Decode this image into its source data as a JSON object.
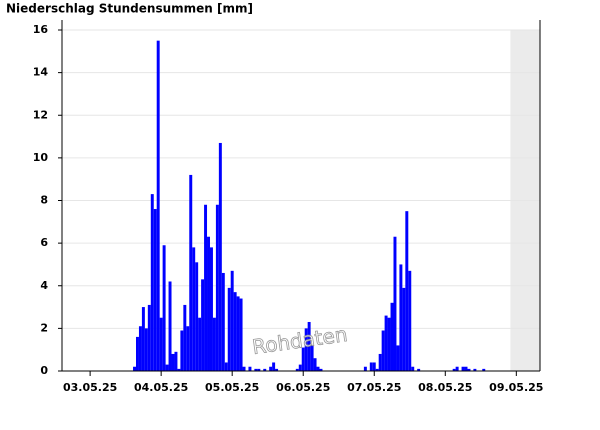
{
  "chart_data": {
    "type": "bar",
    "title": "Niederschlag Stundensummen [mm]",
    "annotation": "Rohdaten",
    "color": "#0000ff",
    "x": [
      15,
      16,
      17,
      18,
      19,
      20,
      21,
      22,
      23,
      24,
      25,
      26,
      27,
      28,
      29,
      30,
      31,
      32,
      33,
      34,
      35,
      36,
      37,
      38,
      39,
      40,
      41,
      42,
      43,
      44,
      45,
      46,
      47,
      48,
      49,
      50,
      51,
      52,
      54,
      56,
      57,
      59,
      61,
      62,
      63,
      70,
      71,
      72,
      73,
      74,
      75,
      76,
      77,
      78,
      93,
      95,
      96,
      97,
      98,
      99,
      100,
      101,
      102,
      103,
      104,
      105,
      106,
      107,
      108,
      109,
      111,
      123,
      124,
      126,
      127,
      128,
      130,
      133
    ],
    "values": [
      0.2,
      1.6,
      2.1,
      3.0,
      2.0,
      3.1,
      8.3,
      7.6,
      15.5,
      2.5,
      5.9,
      0.3,
      4.2,
      0.8,
      0.9,
      0.1,
      1.9,
      3.1,
      2.1,
      9.2,
      5.8,
      5.1,
      2.5,
      4.3,
      7.8,
      6.3,
      5.8,
      2.5,
      7.8,
      10.7,
      4.6,
      0.4,
      3.9,
      4.7,
      3.7,
      3.5,
      3.4,
      0.2,
      0.2,
      0.1,
      0.1,
      0.1,
      0.2,
      0.4,
      0.1,
      0.1,
      0.3,
      1.1,
      2.0,
      2.3,
      1.2,
      0.6,
      0.2,
      0.1,
      0.2,
      0.4,
      0.4,
      0.1,
      0.8,
      1.9,
      2.6,
      2.5,
      3.2,
      6.3,
      1.2,
      5.0,
      3.9,
      7.5,
      4.7,
      0.2,
      0.1,
      0.1,
      0.2,
      0.2,
      0.2,
      0.1,
      0.1,
      0.1
    ],
    "xlim": [
      -9.5,
      152
    ],
    "xticks": [
      {
        "value": 0,
        "label": "03.05.25"
      },
      {
        "value": 24,
        "label": "04.05.25"
      },
      {
        "value": 48,
        "label": "05.05.25"
      },
      {
        "value": 72,
        "label": "06.05.25"
      },
      {
        "value": 96,
        "label": "07.05.25"
      },
      {
        "value": 120,
        "label": "08.05.25"
      },
      {
        "value": 144,
        "label": "09.05.25"
      }
    ],
    "ylim": [
      0,
      16
    ],
    "yticks": [
      0,
      2,
      4,
      6,
      8,
      10,
      12,
      14,
      16
    ],
    "grid": true,
    "shaded_from": 142,
    "shade_color": "#ebebeb"
  }
}
